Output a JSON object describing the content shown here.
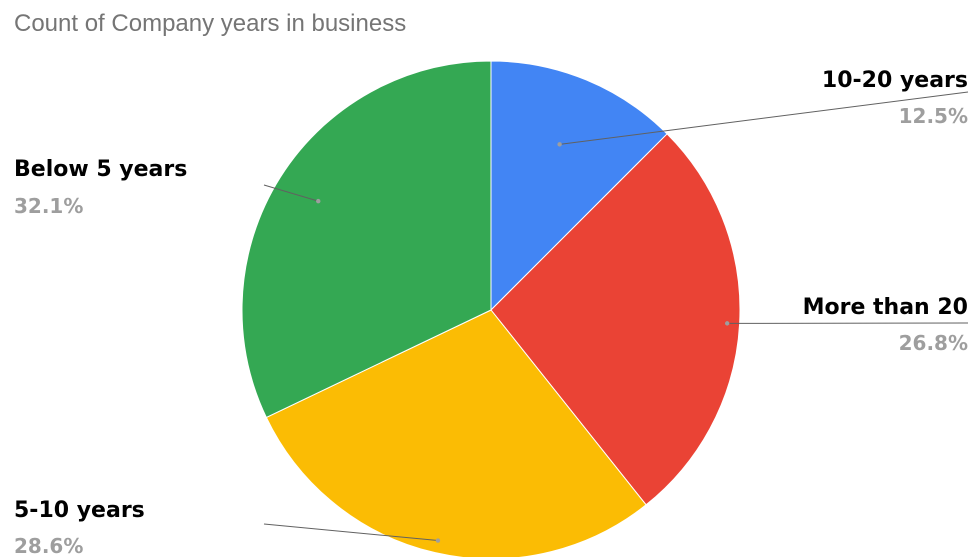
{
  "chart_data": {
    "type": "pie",
    "title": "Count of Company years in business",
    "slices": [
      {
        "label": "10-20 years",
        "value": 12.5,
        "percent_label": "12.5%",
        "color": "#4285F4"
      },
      {
        "label": "More than 20",
        "value": 26.8,
        "percent_label": "26.8%",
        "color": "#EA4335"
      },
      {
        "label": "5-10 years",
        "value": 28.6,
        "percent_label": "28.6%",
        "color": "#FBBC04"
      },
      {
        "label": "Below 5 years",
        "value": 32.1,
        "percent_label": "32.1%",
        "color": "#34A853"
      }
    ],
    "start_angle": "12 o'clock",
    "direction": "clockwise",
    "legend": "labels on slices with leader lines"
  }
}
